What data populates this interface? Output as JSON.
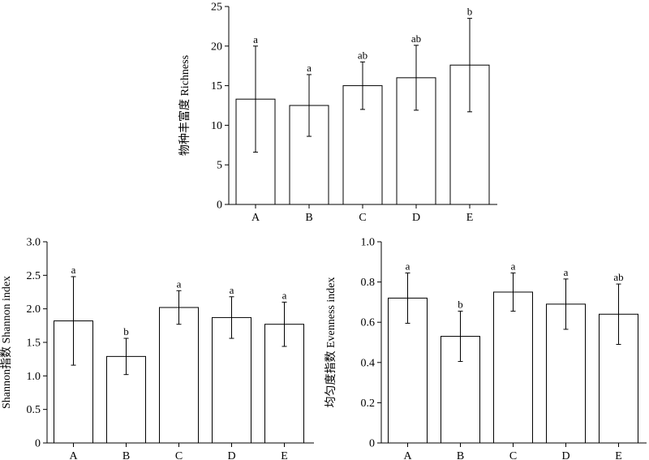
{
  "chart_data": [
    {
      "type": "bar",
      "ylabel": "物种丰富度 Richness",
      "categories": [
        "A",
        "B",
        "C",
        "D",
        "E"
      ],
      "values": [
        13.3,
        12.5,
        15.0,
        16.0,
        17.6
      ],
      "errors": [
        6.7,
        3.9,
        3.0,
        4.1,
        5.9
      ],
      "significance_letters": [
        "a",
        "a",
        "ab",
        "ab",
        "b"
      ],
      "ylim": [
        0,
        25
      ],
      "yticks": [
        "0",
        "5",
        "10",
        "15",
        "20",
        "25"
      ]
    },
    {
      "type": "bar",
      "ylabel": "Shannon指数 Shannon index",
      "categories": [
        "A",
        "B",
        "C",
        "D",
        "E"
      ],
      "values": [
        1.82,
        1.29,
        2.02,
        1.87,
        1.77
      ],
      "errors": [
        0.66,
        0.27,
        0.25,
        0.31,
        0.33
      ],
      "significance_letters": [
        "a",
        "b",
        "a",
        "a",
        "a"
      ],
      "ylim": [
        0,
        3
      ],
      "yticks": [
        "0",
        "0.5",
        "1.0",
        "1.5",
        "2.0",
        "2.5",
        "3.0"
      ]
    },
    {
      "type": "bar",
      "ylabel": "均匀度指数 Evenness index",
      "categories": [
        "A",
        "B",
        "C",
        "D",
        "E"
      ],
      "values": [
        0.72,
        0.53,
        0.75,
        0.69,
        0.64
      ],
      "errors": [
        0.125,
        0.125,
        0.095,
        0.125,
        0.15
      ],
      "significance_letters": [
        "a",
        "b",
        "a",
        "a",
        "ab"
      ],
      "ylim": [
        0,
        1
      ],
      "yticks": [
        "0",
        "0.2",
        "0.4",
        "0.6",
        "0.8",
        "1.0"
      ]
    }
  ]
}
